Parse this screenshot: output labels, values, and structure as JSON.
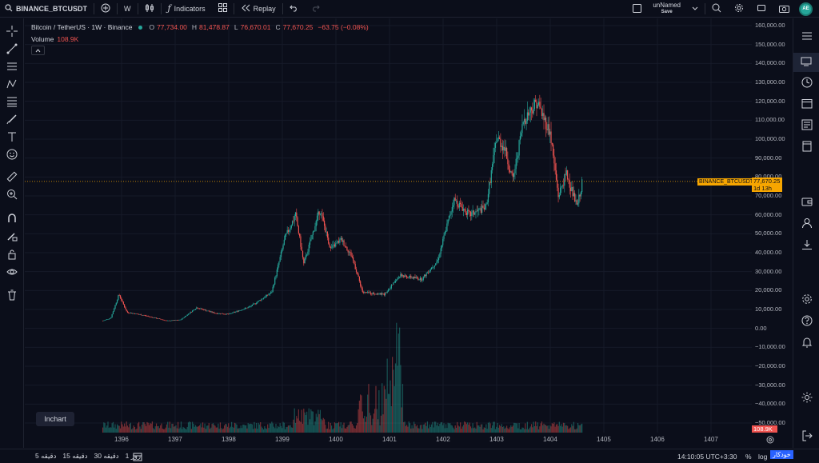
{
  "topbar": {
    "symbol": "BINANCE_BTCUSDT",
    "interval": "W",
    "indicators_label": "Indicators",
    "replay_label": "Replay",
    "layout_name": "unNamed",
    "save_label": "Save",
    "avatar_initials": "AE"
  },
  "legend": {
    "title": "Bitcoin / TetherUS · 1W · Binance",
    "o_label": "O",
    "o_value": "77,734.00",
    "h_label": "H",
    "h_value": "81,478.87",
    "l_label": "L",
    "l_value": "76,670.01",
    "c_label": "C",
    "c_value": "77,670.25",
    "change": "−63.75 (−0.08%)",
    "volume_label": "Volume",
    "volume_value": "108.9K"
  },
  "price_axis": [
    "160,000.00",
    "150,000.00",
    "140,000.00",
    "130,000.00",
    "120,000.00",
    "110,000.00",
    "100,000.00",
    "90,000.00",
    "80,000.00",
    "70,000.00",
    "60,000.00",
    "50,000.00",
    "40,000.00",
    "30,000.00",
    "20,000.00",
    "10,000.00",
    "0.00",
    "−10,000.00",
    "−20,000.00",
    "−30,000.00",
    "−40,000.00",
    "−50,000.00"
  ],
  "time_axis": [
    "1396",
    "1397",
    "1398",
    "1399",
    "1400",
    "1401",
    "1402",
    "1403",
    "1404",
    "1405",
    "1406",
    "1407"
  ],
  "price_tag": {
    "symbol": "BINANCE_BTCUSDT",
    "price": "77,670.25",
    "countdown": "1d 13h"
  },
  "volume_tag": "108.9K",
  "inchart_label": "Inchart",
  "bottombar": {
    "timeframes": [
      "5 دقیقه",
      "15 دقیقه",
      "30 دقیقه",
      "1 روز"
    ],
    "clock": "14:10:05 UTC+3:30",
    "percent": "%",
    "log": "log",
    "auto": "خودکار"
  },
  "colors": {
    "up": "#26a69a",
    "down": "#ef5350",
    "accent": "#f7a600",
    "background": "#0b0e1a"
  },
  "chart_data": {
    "type": "candlestick",
    "series": [
      {
        "name": "Bitcoin / TetherUS · 1W · Binance",
        "x": [
          "1396",
          "1397",
          "1398",
          "1399",
          "1400",
          "1401",
          "1402",
          "1403",
          "1404"
        ],
        "values": [
          4500,
          6500,
          7500,
          10000,
          37000,
          17000,
          29000,
          95000,
          77670
        ]
      },
      {
        "name": "Volume",
        "values": []
      }
    ],
    "ylim": [
      -50000,
      160000
    ],
    "last_price": 77670.25
  }
}
